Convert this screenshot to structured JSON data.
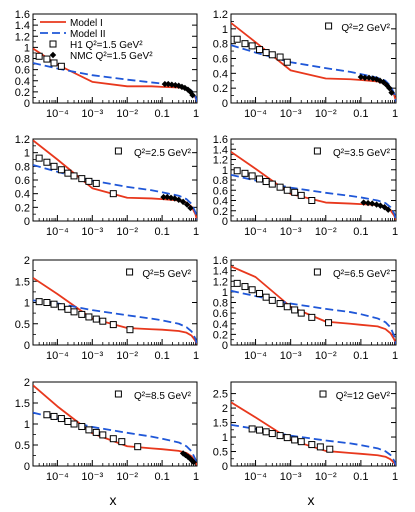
{
  "figure": {
    "xlabel": "x",
    "legend": {
      "entries": [
        {
          "label": "Model I",
          "kind": "solid-line",
          "color": "#e8381d"
        },
        {
          "label": "Model II",
          "kind": "dashed-line",
          "color": "#1f57d8"
        },
        {
          "label": "H1 Q²=1.5 GeV²",
          "kind": "open-square",
          "color": "#000000"
        },
        {
          "label": "NMC Q²=1.5 GeV²",
          "kind": "filled-diamond",
          "color": "#000000"
        }
      ]
    },
    "colors": {
      "model_1": "#e8381d",
      "model_2": "#1f57d8",
      "data": "#000000"
    }
  },
  "chart_data": [
    {
      "type": "line",
      "x_scale": "log",
      "xlim": [
        2e-05,
        1
      ],
      "ylim": [
        0,
        1.6
      ],
      "yticks": [
        0,
        0.2,
        0.4,
        0.6,
        0.8,
        1,
        1.2,
        1.4,
        1.6
      ],
      "xtick_labels": [
        "10⁻⁴",
        "10⁻³",
        "10⁻²",
        "0.1",
        "1"
      ],
      "series": [
        {
          "name": "Model I",
          "x": [
            2e-05,
            0.0001,
            0.001,
            0.01,
            0.05,
            0.1,
            0.3,
            0.5,
            0.7,
            0.9,
            1
          ],
          "y": [
            0.98,
            0.69,
            0.38,
            0.3,
            0.3,
            0.29,
            0.28,
            0.25,
            0.19,
            0.1,
            0.02
          ]
        },
        {
          "name": "Model II",
          "x": [
            2e-05,
            0.0001,
            0.001,
            0.01,
            0.05,
            0.1,
            0.3,
            0.5,
            0.7,
            0.9,
            1
          ],
          "y": [
            0.72,
            0.62,
            0.5,
            0.42,
            0.37,
            0.35,
            0.31,
            0.28,
            0.22,
            0.12,
            0.02
          ]
        },
        {
          "name": "H1 Q²=1.5 GeV²",
          "x": [
            3e-05,
            5e-05,
            8e-05,
            0.00013
          ],
          "y": [
            0.84,
            0.79,
            0.72,
            0.66
          ]
        },
        {
          "name": "NMC Q²=1.5 GeV²",
          "x": [
            0.12,
            0.15,
            0.19,
            0.24,
            0.3,
            0.37,
            0.45,
            0.55,
            0.65,
            0.75
          ],
          "y": [
            0.34,
            0.34,
            0.33,
            0.32,
            0.31,
            0.29,
            0.27,
            0.24,
            0.2,
            0.14
          ]
        }
      ]
    },
    {
      "type": "line",
      "x_scale": "log",
      "xlim": [
        2e-05,
        1
      ],
      "ylim": [
        0,
        1.2
      ],
      "yticks": [
        0,
        0.2,
        0.4,
        0.6,
        0.8,
        1,
        1.2
      ],
      "xtick_labels": [
        "10⁻⁴",
        "10⁻³",
        "10⁻²",
        "0.1",
        "1"
      ],
      "annotation": "Q²=2 GeV²",
      "series": [
        {
          "name": "Model I",
          "x": [
            2e-05,
            0.0001,
            0.001,
            0.01,
            0.05,
            0.1,
            0.3,
            0.5,
            0.7,
            0.9,
            1
          ],
          "y": [
            1.08,
            0.82,
            0.44,
            0.33,
            0.32,
            0.31,
            0.29,
            0.26,
            0.2,
            0.1,
            0.02
          ]
        },
        {
          "name": "Model II",
          "x": [
            2e-05,
            0.0001,
            0.001,
            0.01,
            0.05,
            0.1,
            0.3,
            0.5,
            0.7,
            0.9,
            1
          ],
          "y": [
            0.78,
            0.68,
            0.55,
            0.47,
            0.42,
            0.39,
            0.34,
            0.3,
            0.23,
            0.12,
            0.02
          ]
        },
        {
          "name": "H1 Q²=2 GeV²",
          "x": [
            3e-05,
            5e-05,
            8e-05,
            0.00013,
            0.0002,
            0.0003,
            0.0005,
            0.0008
          ],
          "y": [
            0.86,
            0.8,
            0.77,
            0.72,
            0.68,
            0.65,
            0.62,
            0.55
          ]
        },
        {
          "name": "NMC Q²=2 GeV²",
          "x": [
            0.1,
            0.13,
            0.17,
            0.22,
            0.28,
            0.35,
            0.44,
            0.55,
            0.65,
            0.75
          ],
          "y": [
            0.35,
            0.34,
            0.34,
            0.33,
            0.32,
            0.3,
            0.28,
            0.24,
            0.2,
            0.14
          ]
        }
      ]
    },
    {
      "type": "line",
      "x_scale": "log",
      "xlim": [
        2e-05,
        1
      ],
      "ylim": [
        0,
        1.2
      ],
      "yticks": [
        0,
        0.2,
        0.4,
        0.6,
        0.8,
        1,
        1.2
      ],
      "xtick_labels": [
        "10⁻⁴",
        "10⁻³",
        "10⁻²",
        "0.1",
        "1"
      ],
      "annotation": "Q²=2.5 GeV²",
      "series": [
        {
          "name": "Model I",
          "x": [
            2e-05,
            0.0001,
            0.001,
            0.01,
            0.05,
            0.1,
            0.3,
            0.5,
            0.7,
            0.9,
            1
          ],
          "y": [
            1.18,
            0.9,
            0.48,
            0.34,
            0.33,
            0.32,
            0.3,
            0.27,
            0.21,
            0.1,
            0.02
          ]
        },
        {
          "name": "Model II",
          "x": [
            2e-05,
            0.0001,
            0.001,
            0.01,
            0.05,
            0.1,
            0.3,
            0.5,
            0.7,
            0.9,
            1
          ],
          "y": [
            0.82,
            0.72,
            0.59,
            0.5,
            0.45,
            0.42,
            0.37,
            0.32,
            0.25,
            0.13,
            0.02
          ]
        },
        {
          "name": "H1 Q²=2.5 GeV²",
          "x": [
            3e-05,
            5e-05,
            8e-05,
            0.00013,
            0.0002,
            0.0003,
            0.0005,
            0.0008,
            0.0013,
            0.004
          ],
          "y": [
            0.92,
            0.86,
            0.8,
            0.75,
            0.7,
            0.66,
            0.62,
            0.58,
            0.55,
            0.4
          ]
        },
        {
          "name": "NMC Q²=2.5 GeV²",
          "x": [
            0.11,
            0.14,
            0.18,
            0.23,
            0.3,
            0.4,
            0.52,
            0.65
          ],
          "y": [
            0.35,
            0.35,
            0.34,
            0.33,
            0.31,
            0.28,
            0.24,
            0.19
          ]
        }
      ]
    },
    {
      "type": "line",
      "x_scale": "log",
      "xlim": [
        2e-05,
        1
      ],
      "ylim": [
        0,
        1.6
      ],
      "yticks": [
        0,
        0.2,
        0.4,
        0.6,
        0.8,
        1,
        1.2,
        1.4,
        1.6
      ],
      "xtick_labels": [
        "10⁻⁴",
        "10⁻³",
        "10⁻²",
        "0.1",
        "1"
      ],
      "annotation": "Q²=3.5 GeV²",
      "series": [
        {
          "name": "Model I",
          "x": [
            2e-05,
            0.0001,
            0.001,
            0.01,
            0.05,
            0.1,
            0.3,
            0.5,
            0.7,
            0.9,
            1
          ],
          "y": [
            1.35,
            1.02,
            0.53,
            0.36,
            0.34,
            0.33,
            0.31,
            0.28,
            0.21,
            0.1,
            0.02
          ]
        },
        {
          "name": "Model II",
          "x": [
            2e-05,
            0.0001,
            0.001,
            0.01,
            0.05,
            0.1,
            0.3,
            0.5,
            0.7,
            0.9,
            1
          ],
          "y": [
            0.9,
            0.79,
            0.65,
            0.55,
            0.49,
            0.46,
            0.4,
            0.35,
            0.27,
            0.14,
            0.02
          ]
        },
        {
          "name": "H1 Q²=3.5 GeV²",
          "x": [
            3e-05,
            5e-05,
            8e-05,
            0.00013,
            0.0002,
            0.0003,
            0.0005,
            0.0008,
            0.0013,
            0.002,
            0.004
          ],
          "y": [
            0.98,
            0.93,
            0.88,
            0.82,
            0.77,
            0.72,
            0.66,
            0.6,
            0.56,
            0.5,
            0.4
          ]
        },
        {
          "name": "NMC Q²=3.5 GeV²",
          "x": [
            0.12,
            0.16,
            0.21,
            0.28,
            0.36,
            0.47,
            0.6
          ],
          "y": [
            0.36,
            0.35,
            0.34,
            0.32,
            0.3,
            0.27,
            0.22
          ]
        }
      ]
    },
    {
      "type": "line",
      "x_scale": "log",
      "xlim": [
        2e-05,
        1
      ],
      "ylim": [
        0,
        2
      ],
      "yticks": [
        0,
        0.5,
        1,
        1.5,
        2
      ],
      "xtick_labels": [
        "10⁻⁴",
        "10⁻³",
        "10⁻²",
        "0.1",
        "1"
      ],
      "annotation": "Q²=5 GeV²",
      "series": [
        {
          "name": "Model I",
          "x": [
            2e-05,
            0.0001,
            0.001,
            0.01,
            0.05,
            0.1,
            0.3,
            0.5,
            0.7,
            0.9,
            1
          ],
          "y": [
            1.58,
            1.2,
            0.62,
            0.4,
            0.37,
            0.36,
            0.33,
            0.29,
            0.22,
            0.1,
            0.02
          ]
        },
        {
          "name": "Model II",
          "x": [
            2e-05,
            0.0001,
            0.001,
            0.01,
            0.05,
            0.1,
            0.3,
            0.5,
            0.7,
            0.9,
            1
          ],
          "y": [
            1.05,
            0.98,
            0.82,
            0.7,
            0.62,
            0.58,
            0.5,
            0.42,
            0.32,
            0.15,
            0.02
          ]
        },
        {
          "name": "H1 Q²=5 GeV²",
          "x": [
            3e-05,
            5e-05,
            8e-05,
            0.00013,
            0.0002,
            0.0003,
            0.0005,
            0.0008,
            0.0013,
            0.002,
            0.004,
            0.012
          ],
          "y": [
            1.02,
            1.0,
            0.96,
            0.9,
            0.84,
            0.78,
            0.72,
            0.66,
            0.61,
            0.56,
            0.48,
            0.36
          ]
        }
      ]
    },
    {
      "type": "line",
      "x_scale": "log",
      "xlim": [
        2e-05,
        1
      ],
      "ylim": [
        0,
        1.6
      ],
      "yticks": [
        0,
        0.2,
        0.4,
        0.6,
        0.8,
        1,
        1.2,
        1.4,
        1.6
      ],
      "xtick_labels": [
        "10⁻⁴",
        "10⁻³",
        "10⁻²",
        "0.1",
        "1"
      ],
      "annotation": "Q²=6.5 GeV²",
      "series": [
        {
          "name": "Model I",
          "x": [
            2e-05,
            0.0001,
            0.001,
            0.01,
            0.05,
            0.1,
            0.3,
            0.5,
            0.7,
            0.9,
            1
          ],
          "y": [
            1.48,
            1.28,
            0.72,
            0.44,
            0.4,
            0.38,
            0.35,
            0.3,
            0.22,
            0.1,
            0.02
          ]
        },
        {
          "name": "Model II",
          "x": [
            2e-05,
            0.0001,
            0.001,
            0.01,
            0.05,
            0.1,
            0.3,
            0.5,
            0.7,
            0.9,
            1
          ],
          "y": [
            1.02,
            0.92,
            0.78,
            0.68,
            0.62,
            0.58,
            0.5,
            0.43,
            0.33,
            0.16,
            0.02
          ]
        },
        {
          "name": "H1 Q²=6.5 GeV²",
          "x": [
            3e-05,
            5e-05,
            8e-05,
            0.00013,
            0.0002,
            0.0003,
            0.0005,
            0.0008,
            0.0013,
            0.002,
            0.004,
            0.012
          ],
          "y": [
            1.16,
            1.1,
            1.04,
            0.97,
            0.9,
            0.84,
            0.78,
            0.72,
            0.66,
            0.6,
            0.52,
            0.42
          ]
        }
      ]
    },
    {
      "type": "line",
      "x_scale": "log",
      "xlim": [
        2e-05,
        1
      ],
      "ylim": [
        0,
        2
      ],
      "yticks": [
        0,
        0.5,
        1,
        1.5,
        2
      ],
      "xtick_labels": [
        "10⁻⁴",
        "10⁻³",
        "10⁻²",
        "0.1",
        "1"
      ],
      "annotation": "Q²=8.5 GeV²",
      "series": [
        {
          "name": "Model I",
          "x": [
            2e-05,
            0.0001,
            0.001,
            0.01,
            0.05,
            0.1,
            0.3,
            0.5,
            0.7,
            0.9,
            1
          ],
          "y": [
            1.92,
            1.42,
            0.78,
            0.47,
            0.42,
            0.4,
            0.36,
            0.31,
            0.23,
            0.1,
            0.02
          ]
        },
        {
          "name": "Model II",
          "x": [
            2e-05,
            0.0001,
            0.001,
            0.01,
            0.05,
            0.1,
            0.3,
            0.5,
            0.7,
            0.9,
            1
          ],
          "y": [
            1.27,
            1.13,
            0.93,
            0.79,
            0.7,
            0.65,
            0.56,
            0.47,
            0.35,
            0.16,
            0.02
          ]
        },
        {
          "name": "H1 Q²=8.5 GeV²",
          "x": [
            5e-05,
            8e-05,
            0.00013,
            0.0002,
            0.0003,
            0.0005,
            0.0008,
            0.0013,
            0.002,
            0.004,
            0.007,
            0.02
          ],
          "y": [
            1.22,
            1.18,
            1.13,
            1.06,
            1.0,
            0.94,
            0.86,
            0.8,
            0.74,
            0.65,
            0.58,
            0.46
          ]
        },
        {
          "name": "NMC Q²=8.5 GeV²",
          "x": [
            0.4,
            0.47,
            0.55,
            0.63,
            0.72,
            0.8
          ],
          "y": [
            0.3,
            0.26,
            0.22,
            0.18,
            0.13,
            0.09
          ]
        }
      ]
    },
    {
      "type": "line",
      "x_scale": "log",
      "xlim": [
        2e-05,
        1
      ],
      "ylim": [
        0,
        2.9
      ],
      "yticks": [
        0,
        0.5,
        1,
        1.5,
        2,
        2.5
      ],
      "xtick_labels": [
        "10⁻⁴",
        "10⁻³",
        "10⁻²",
        "0.1",
        "1"
      ],
      "annotation": "Q²=12 GeV²",
      "series": [
        {
          "name": "Model I",
          "x": [
            2e-05,
            0.0001,
            0.001,
            0.01,
            0.05,
            0.1,
            0.3,
            0.5,
            0.7,
            0.9,
            1
          ],
          "y": [
            2.2,
            1.68,
            0.9,
            0.52,
            0.45,
            0.42,
            0.37,
            0.32,
            0.23,
            0.1,
            0.02
          ]
        },
        {
          "name": "Model II",
          "x": [
            2e-05,
            0.0001,
            0.001,
            0.01,
            0.05,
            0.1,
            0.3,
            0.5,
            0.7,
            0.9,
            1
          ],
          "y": [
            1.42,
            1.28,
            1.05,
            0.88,
            0.78,
            0.72,
            0.61,
            0.51,
            0.38,
            0.17,
            0.02
          ]
        },
        {
          "name": "H1 Q²=12 GeV²",
          "x": [
            8e-05,
            0.00013,
            0.0002,
            0.0003,
            0.0005,
            0.0008,
            0.0013,
            0.002,
            0.004,
            0.007,
            0.013
          ],
          "y": [
            1.28,
            1.24,
            1.18,
            1.12,
            1.05,
            0.98,
            0.9,
            0.84,
            0.74,
            0.66,
            0.58
          ]
        }
      ]
    }
  ]
}
